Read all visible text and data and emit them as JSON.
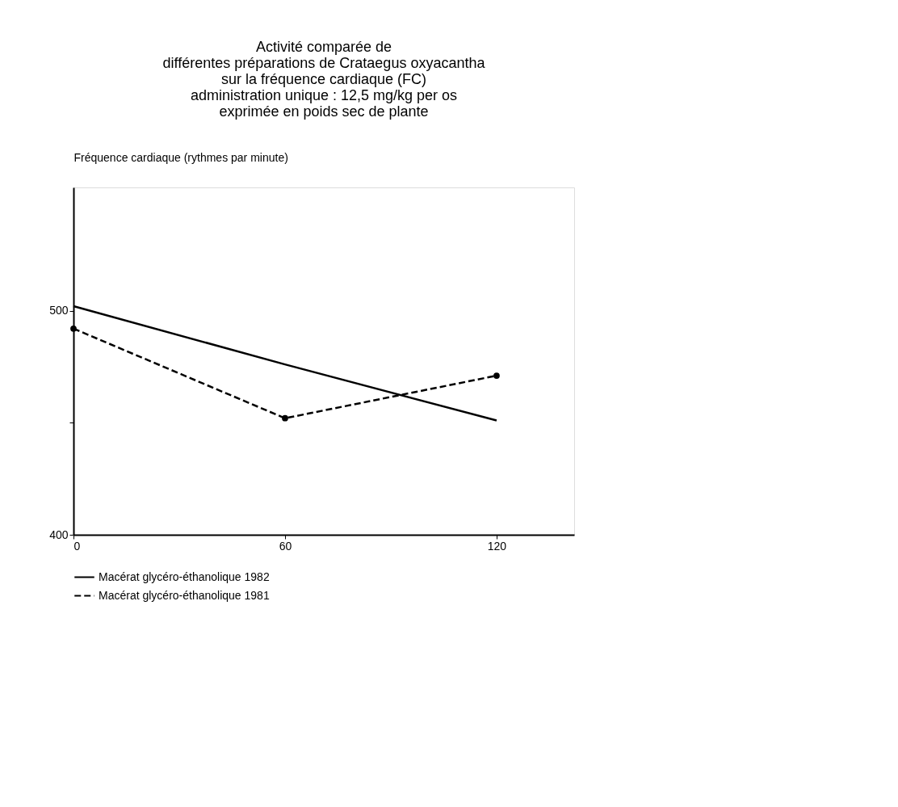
{
  "chart_data": {
    "type": "line",
    "title": [
      "Activité comparée de",
      "différentes préparations de Crataegus oxyacantha",
      "sur la fréquence cardiaque (FC)",
      "administration unique : 12,5 mg/kg per os",
      "exprimée en poids sec de plante"
    ],
    "ylabel": "Fréquence cardiaque (rythmes par minute)",
    "x": [
      0,
      60,
      120
    ],
    "series": [
      {
        "name": "Macérat glycéro-éthanolique 1982",
        "color": "#000000",
        "values": [
          502,
          476,
          451
        ],
        "line_style": "solid",
        "marker": "none"
      },
      {
        "name": "Macérat glycéro-éthanolique 1981",
        "color": "#000000",
        "values": [
          492,
          452,
          471
        ],
        "line_style": "dashed",
        "marker": "circle"
      }
    ],
    "xlim": [
      0,
      142
    ],
    "xticks": [
      0,
      60,
      120
    ],
    "ylim": [
      400,
      555
    ],
    "yticks": [
      400,
      {
        "value": 450,
        "label": null
      },
      500
    ],
    "grid": false,
    "legend": "bottom"
  }
}
